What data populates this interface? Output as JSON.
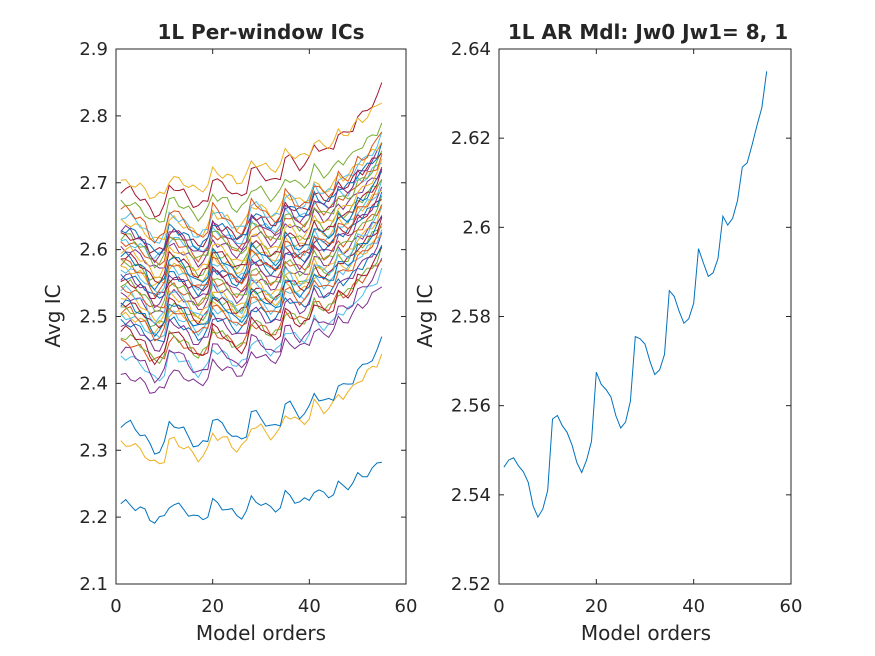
{
  "figure_colors": [
    "#0072BD",
    "#D95319",
    "#EDB120",
    "#7E2F8E",
    "#77AC30",
    "#4DBEEE",
    "#A2142F"
  ],
  "chart_data": [
    {
      "type": "line",
      "title": "1L Per-window ICs",
      "xlabel": "Model orders",
      "ylabel": "Avg IC",
      "xlim": [
        0,
        60
      ],
      "ylim": [
        2.1,
        2.9
      ],
      "xticks": [
        "0",
        "20",
        "40",
        "60"
      ],
      "yticks": [
        "2.1",
        "2.2",
        "2.3",
        "2.4",
        "2.5",
        "2.6",
        "2.7",
        "2.8",
        "2.9"
      ],
      "grid": false,
      "legend": "none",
      "x_start": 1,
      "x_end": 55,
      "series": [
        {
          "start": 2.22,
          "end": 2.286,
          "color": "#0072BD"
        },
        {
          "start": 2.31,
          "end": 2.445,
          "color": "#EDB120"
        },
        {
          "start": 2.34,
          "end": 2.465,
          "color": "#0072BD"
        },
        {
          "start": 2.41,
          "end": 2.55,
          "color": "#7E2F8E"
        },
        {
          "start": 2.44,
          "end": 2.57,
          "color": "#4DBEEE"
        },
        {
          "start": 2.45,
          "end": 2.585,
          "color": "#7E2F8E"
        },
        {
          "start": 2.46,
          "end": 2.59,
          "color": "#D95319"
        },
        {
          "start": 2.47,
          "end": 2.6,
          "color": "#77AC30"
        },
        {
          "start": 2.48,
          "end": 2.605,
          "color": "#A2142F"
        },
        {
          "start": 2.49,
          "end": 2.61,
          "color": "#0072BD"
        },
        {
          "start": 2.49,
          "end": 2.62,
          "color": "#7E2F8E"
        },
        {
          "start": 2.5,
          "end": 2.625,
          "color": "#EDB120"
        },
        {
          "start": 2.5,
          "end": 2.63,
          "color": "#4DBEEE"
        },
        {
          "start": 2.51,
          "end": 2.635,
          "color": "#D95319"
        },
        {
          "start": 2.51,
          "end": 2.64,
          "color": "#77AC30"
        },
        {
          "start": 2.52,
          "end": 2.645,
          "color": "#A2142F"
        },
        {
          "start": 2.52,
          "end": 2.65,
          "color": "#0072BD"
        },
        {
          "start": 2.53,
          "end": 2.655,
          "color": "#7E2F8E"
        },
        {
          "start": 2.53,
          "end": 2.66,
          "color": "#EDB120"
        },
        {
          "start": 2.54,
          "end": 2.665,
          "color": "#4DBEEE"
        },
        {
          "start": 2.54,
          "end": 2.67,
          "color": "#D95319"
        },
        {
          "start": 2.55,
          "end": 2.675,
          "color": "#77AC30"
        },
        {
          "start": 2.55,
          "end": 2.68,
          "color": "#A2142F"
        },
        {
          "start": 2.56,
          "end": 2.685,
          "color": "#0072BD"
        },
        {
          "start": 2.56,
          "end": 2.69,
          "color": "#7E2F8E"
        },
        {
          "start": 2.57,
          "end": 2.695,
          "color": "#EDB120"
        },
        {
          "start": 2.57,
          "end": 2.7,
          "color": "#4DBEEE"
        },
        {
          "start": 2.58,
          "end": 2.705,
          "color": "#D95319"
        },
        {
          "start": 2.58,
          "end": 2.71,
          "color": "#77AC30"
        },
        {
          "start": 2.59,
          "end": 2.715,
          "color": "#A2142F"
        },
        {
          "start": 2.59,
          "end": 2.72,
          "color": "#0072BD"
        },
        {
          "start": 2.6,
          "end": 2.725,
          "color": "#7E2F8E"
        },
        {
          "start": 2.6,
          "end": 2.73,
          "color": "#EDB120"
        },
        {
          "start": 2.61,
          "end": 2.735,
          "color": "#4DBEEE"
        },
        {
          "start": 2.61,
          "end": 2.74,
          "color": "#D95319"
        },
        {
          "start": 2.62,
          "end": 2.745,
          "color": "#77AC30"
        },
        {
          "start": 2.62,
          "end": 2.75,
          "color": "#A2142F"
        },
        {
          "start": 2.63,
          "end": 2.755,
          "color": "#0072BD"
        },
        {
          "start": 2.63,
          "end": 2.76,
          "color": "#7E2F8E"
        },
        {
          "start": 2.64,
          "end": 2.765,
          "color": "#EDB120"
        },
        {
          "start": 2.65,
          "end": 2.77,
          "color": "#4DBEEE"
        },
        {
          "start": 2.66,
          "end": 2.78,
          "color": "#D95319"
        },
        {
          "start": 2.67,
          "end": 2.79,
          "color": "#77AC30"
        },
        {
          "start": 2.69,
          "end": 2.845,
          "color": "#A2142F"
        },
        {
          "start": 2.7,
          "end": 2.825,
          "color": "#EDB120"
        }
      ]
    },
    {
      "type": "line",
      "title": "1L AR Mdl: Jw0 Jw1= 8, 1",
      "xlabel": "Model orders",
      "ylabel": "Avg IC",
      "xlim": [
        0,
        60
      ],
      "ylim": [
        2.52,
        2.64
      ],
      "xticks": [
        "0",
        "20",
        "40",
        "60"
      ],
      "yticks": [
        "2.52",
        "2.54",
        "2.56",
        "2.58",
        "2.6",
        "2.62",
        "2.64"
      ],
      "grid": false,
      "legend": "none",
      "series": [
        {
          "color": "#0072BD",
          "x": [
            1,
            2,
            3,
            4,
            5,
            6,
            7,
            8,
            9,
            10,
            11,
            12,
            13,
            14,
            15,
            16,
            17,
            18,
            19,
            20,
            21,
            22,
            23,
            24,
            25,
            26,
            27,
            28,
            29,
            30,
            31,
            32,
            33,
            34,
            35,
            36,
            37,
            38,
            39,
            40,
            41,
            42,
            43,
            44,
            45,
            46,
            47,
            48,
            49,
            50,
            51,
            52,
            53,
            54,
            55
          ],
          "y": [
            2.5462,
            2.5478,
            2.5483,
            2.5465,
            2.5452,
            2.5428,
            2.5375,
            2.535,
            2.5368,
            2.541,
            2.557,
            2.5578,
            2.5555,
            2.554,
            2.5512,
            2.5472,
            2.545,
            2.5478,
            2.552,
            2.5675,
            2.5648,
            2.5636,
            2.562,
            2.5578,
            2.555,
            2.5563,
            2.561,
            2.5755,
            2.575,
            2.5738,
            2.57,
            2.567,
            2.568,
            2.5715,
            2.5858,
            2.5845,
            2.5812,
            2.5785,
            2.5795,
            2.583,
            2.5952,
            2.592,
            2.589,
            2.5898,
            2.593,
            2.6025,
            2.6005,
            2.602,
            2.606,
            2.6135,
            2.6145,
            2.6185,
            2.6228,
            2.6268,
            2.635
          ]
        }
      ]
    }
  ]
}
